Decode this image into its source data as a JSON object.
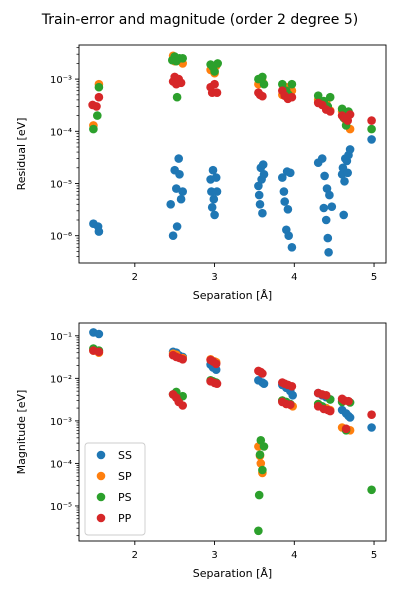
{
  "figure_title": "Train-error and magnitude (order 2 degree 5)",
  "colors": {
    "SS": "#1f77b4",
    "SP": "#ff7f0e",
    "PS": "#2ca02c",
    "PP": "#d62728"
  },
  "chart_data": [
    {
      "type": "scatter",
      "title": "",
      "xlabel": "Separation [Å]",
      "ylabel": "Residual [eV]",
      "xlim": [
        1.3,
        5.15
      ],
      "ylim": [
        3e-07,
        0.0045
      ],
      "yscale": "log",
      "xticks": [
        2,
        3,
        4,
        5
      ],
      "yticks": [
        1e-06,
        1e-05,
        0.0001,
        0.001
      ],
      "ytick_labels": [
        "10⁻⁶",
        "10⁻⁵",
        "10⁻⁴",
        "10⁻³"
      ],
      "grid": false,
      "legend": null,
      "series": [
        {
          "name": "SS",
          "points": [
            [
              1.48,
              1.7e-06
            ],
            [
              1.54,
              1.5e-06
            ],
            [
              1.55,
              1.2e-06
            ],
            [
              2.45,
              4e-06
            ],
            [
              2.48,
              1e-06
            ],
            [
              2.5,
              1.8e-05
            ],
            [
              2.52,
              8e-06
            ],
            [
              2.53,
              1.5e-06
            ],
            [
              2.55,
              3e-05
            ],
            [
              2.56,
              1.5e-05
            ],
            [
              2.58,
              5e-06
            ],
            [
              2.6,
              7e-06
            ],
            [
              2.95,
              1.2e-05
            ],
            [
              2.96,
              7e-06
            ],
            [
              2.97,
              3.5e-06
            ],
            [
              2.98,
              1.8e-05
            ],
            [
              2.99,
              5e-06
            ],
            [
              3.0,
              2.5e-06
            ],
            [
              3.02,
              1.3e-05
            ],
            [
              3.03,
              7e-06
            ],
            [
              3.55,
              9e-06
            ],
            [
              3.56,
              6e-06
            ],
            [
              3.57,
              4e-06
            ],
            [
              3.58,
              2e-05
            ],
            [
              3.59,
              1.2e-05
            ],
            [
              3.6,
              2.7e-06
            ],
            [
              3.61,
              2.3e-05
            ],
            [
              3.62,
              1.5e-05
            ],
            [
              3.85,
              1.3e-05
            ],
            [
              3.87,
              7e-06
            ],
            [
              3.88,
              4.5e-06
            ],
            [
              3.9,
              1.3e-06
            ],
            [
              3.91,
              1.7e-05
            ],
            [
              3.92,
              3.2e-06
            ],
            [
              3.93,
              1e-06
            ],
            [
              3.95,
              1.6e-05
            ],
            [
              3.97,
              6e-07
            ],
            [
              4.3,
              2.5e-05
            ],
            [
              4.35,
              3e-05
            ],
            [
              4.37,
              3.4e-06
            ],
            [
              4.38,
              1.4e-05
            ],
            [
              4.4,
              2e-06
            ],
            [
              4.41,
              8e-06
            ],
            [
              4.42,
              9e-07
            ],
            [
              4.43,
              4.8e-07
            ],
            [
              4.44,
              6e-06
            ],
            [
              4.47,
              3.6e-06
            ],
            [
              4.6,
              1.5e-05
            ],
            [
              4.61,
              2e-05
            ],
            [
              4.62,
              2.5e-06
            ],
            [
              4.63,
              1.1e-05
            ],
            [
              4.64,
              3e-05
            ],
            [
              4.66,
              2.7e-05
            ],
            [
              4.67,
              1.6e-05
            ],
            [
              4.68,
              3.5e-05
            ],
            [
              4.7,
              4.5e-05
            ],
            [
              4.97,
              7e-05
            ]
          ]
        },
        {
          "name": "SP",
          "points": [
            [
              1.48,
              0.00013
            ],
            [
              1.55,
              0.0008
            ],
            [
              2.48,
              0.0028
            ],
            [
              2.5,
              0.0022
            ],
            [
              2.52,
              0.0025
            ],
            [
              2.55,
              0.0024
            ],
            [
              2.6,
              0.002
            ],
            [
              2.95,
              0.0015
            ],
            [
              3.0,
              0.0013
            ],
            [
              3.02,
              0.0018
            ],
            [
              3.55,
              0.0008
            ],
            [
              3.6,
              0.0009
            ],
            [
              3.85,
              0.0005
            ],
            [
              3.9,
              0.0007
            ],
            [
              3.97,
              0.0006
            ],
            [
              4.3,
              0.0004
            ],
            [
              4.4,
              0.00035
            ],
            [
              4.45,
              0.00025
            ],
            [
              4.6,
              0.00024
            ],
            [
              4.65,
              0.00016
            ],
            [
              4.7,
              0.00011
            ]
          ]
        },
        {
          "name": "PS",
          "points": [
            [
              1.48,
              0.00011
            ],
            [
              1.53,
              0.0002
            ],
            [
              1.55,
              0.0007
            ],
            [
              2.47,
              0.0023
            ],
            [
              2.5,
              0.0027
            ],
            [
              2.52,
              0.0022
            ],
            [
              2.53,
              0.00045
            ],
            [
              2.56,
              0.0025
            ],
            [
              2.6,
              0.0025
            ],
            [
              2.95,
              0.0019
            ],
            [
              2.98,
              0.0017
            ],
            [
              3.0,
              0.0014
            ],
            [
              3.04,
              0.002
            ],
            [
              3.55,
              0.001
            ],
            [
              3.6,
              0.0011
            ],
            [
              3.62,
              0.0008
            ],
            [
              3.85,
              0.0008
            ],
            [
              3.9,
              0.0006
            ],
            [
              3.93,
              0.0005
            ],
            [
              3.97,
              0.0008
            ],
            [
              4.3,
              0.00048
            ],
            [
              4.37,
              0.00038
            ],
            [
              4.42,
              0.0003
            ],
            [
              4.45,
              0.00045
            ],
            [
              4.6,
              0.00027
            ],
            [
              4.62,
              0.00018
            ],
            [
              4.65,
              0.00013
            ],
            [
              4.68,
              0.00024
            ],
            [
              4.97,
              0.00011
            ]
          ]
        },
        {
          "name": "PP",
          "points": [
            [
              1.47,
              0.00032
            ],
            [
              1.52,
              0.0003
            ],
            [
              1.55,
              0.00045
            ],
            [
              2.48,
              0.0009
            ],
            [
              2.5,
              0.0011
            ],
            [
              2.52,
              0.0008
            ],
            [
              2.55,
              0.001
            ],
            [
              2.58,
              0.00085
            ],
            [
              2.95,
              0.0007
            ],
            [
              2.97,
              0.00055
            ],
            [
              3.0,
              0.0008
            ],
            [
              3.03,
              0.00055
            ],
            [
              3.55,
              0.00055
            ],
            [
              3.57,
              0.0005
            ],
            [
              3.6,
              0.00047
            ],
            [
              3.85,
              0.0006
            ],
            [
              3.88,
              0.00048
            ],
            [
              3.92,
              0.00042
            ],
            [
              3.97,
              0.00045
            ],
            [
              4.3,
              0.00035
            ],
            [
              4.35,
              0.00032
            ],
            [
              4.4,
              0.00026
            ],
            [
              4.45,
              0.00024
            ],
            [
              4.6,
              0.0002
            ],
            [
              4.63,
              0.00018
            ],
            [
              4.67,
              0.00016
            ],
            [
              4.7,
              0.00021
            ],
            [
              4.97,
              0.00016
            ]
          ]
        }
      ]
    },
    {
      "type": "scatter",
      "title": "",
      "xlabel": "Separation [Å]",
      "ylabel": "Magnitude [eV]",
      "xlim": [
        1.3,
        5.15
      ],
      "ylim": [
        1.5e-06,
        0.2
      ],
      "yscale": "log",
      "xticks": [
        2,
        3,
        4,
        5
      ],
      "yticks": [
        1e-05,
        0.0001,
        0.001,
        0.01,
        0.1
      ],
      "ytick_labels": [
        "10⁻⁵",
        "10⁻⁴",
        "10⁻³",
        "10⁻²",
        "10⁻¹"
      ],
      "grid": false,
      "legend": "lower-left",
      "legend_entries": [
        "SS",
        "SP",
        "PS",
        "PP"
      ],
      "series": [
        {
          "name": "SS",
          "points": [
            [
              1.48,
              0.12
            ],
            [
              1.55,
              0.11
            ],
            [
              2.48,
              0.042
            ],
            [
              2.52,
              0.04
            ],
            [
              2.55,
              0.035
            ],
            [
              2.6,
              0.032
            ],
            [
              2.95,
              0.021
            ],
            [
              2.98,
              0.018
            ],
            [
              3.02,
              0.016
            ],
            [
              3.55,
              0.009
            ],
            [
              3.6,
              0.008
            ],
            [
              3.62,
              0.0075
            ],
            [
              3.85,
              0.007
            ],
            [
              3.9,
              0.006
            ],
            [
              3.95,
              0.005
            ],
            [
              3.98,
              0.004
            ],
            [
              4.3,
              0.0045
            ],
            [
              4.35,
              0.004
            ],
            [
              4.4,
              0.0036
            ],
            [
              4.45,
              0.0032
            ],
            [
              4.6,
              0.0018
            ],
            [
              4.65,
              0.0015
            ],
            [
              4.68,
              0.0013
            ],
            [
              4.7,
              0.0012
            ],
            [
              4.97,
              0.0007
            ]
          ]
        },
        {
          "name": "SP",
          "points": [
            [
              1.48,
              0.045
            ],
            [
              1.55,
              0.04
            ],
            [
              2.48,
              0.038
            ],
            [
              2.52,
              0.036
            ],
            [
              2.6,
              0.03
            ],
            [
              2.95,
              0.028
            ],
            [
              3.0,
              0.025
            ],
            [
              3.02,
              0.024
            ],
            [
              3.55,
              0.00025
            ],
            [
              3.57,
              0.00015
            ],
            [
              3.58,
              0.0001
            ],
            [
              3.6,
              6e-05
            ],
            [
              3.85,
              0.003
            ],
            [
              3.9,
              0.0025
            ],
            [
              3.98,
              0.0022
            ],
            [
              4.3,
              0.0025
            ],
            [
              4.4,
              0.002
            ],
            [
              4.45,
              0.0018
            ],
            [
              4.6,
              0.0007
            ],
            [
              4.65,
              0.00065
            ],
            [
              4.7,
              0.0006
            ]
          ]
        },
        {
          "name": "PS",
          "points": [
            [
              1.48,
              0.05
            ],
            [
              1.55,
              0.045
            ],
            [
              2.48,
              0.0042
            ],
            [
              2.52,
              0.0048
            ],
            [
              2.55,
              0.0035
            ],
            [
              2.6,
              0.0038
            ],
            [
              2.95,
              0.009
            ],
            [
              2.98,
              0.0085
            ],
            [
              3.02,
              0.008
            ],
            [
              3.55,
              2.6e-06
            ],
            [
              3.56,
              1.8e-05
            ],
            [
              3.57,
              0.00016
            ],
            [
              3.58,
              0.00035
            ],
            [
              3.6,
              7e-05
            ],
            [
              3.62,
              0.00025
            ],
            [
              3.85,
              0.003
            ],
            [
              3.9,
              0.0028
            ],
            [
              3.95,
              0.0025
            ],
            [
              4.3,
              0.0025
            ],
            [
              4.35,
              0.0022
            ],
            [
              4.45,
              0.0032
            ],
            [
              4.6,
              0.0028
            ],
            [
              4.65,
              0.0006
            ],
            [
              4.7,
              0.0027
            ],
            [
              4.97,
              2.4e-05
            ]
          ]
        },
        {
          "name": "PP",
          "points": [
            [
              1.48,
              0.045
            ],
            [
              1.55,
              0.042
            ],
            [
              2.48,
              0.035
            ],
            [
              2.52,
              0.032
            ],
            [
              2.56,
              0.03
            ],
            [
              2.6,
              0.028
            ],
            [
              2.48,
              0.0042
            ],
            [
              2.52,
              0.0035
            ],
            [
              2.55,
              0.0028
            ],
            [
              2.6,
              0.0023
            ],
            [
              2.95,
              0.027
            ],
            [
              2.98,
              0.025
            ],
            [
              3.02,
              0.022
            ],
            [
              2.95,
              0.0085
            ],
            [
              3.0,
              0.0078
            ],
            [
              3.03,
              0.0075
            ],
            [
              3.55,
              0.015
            ],
            [
              3.58,
              0.014
            ],
            [
              3.6,
              0.013
            ],
            [
              3.85,
              0.008
            ],
            [
              3.88,
              0.0075
            ],
            [
              3.92,
              0.007
            ],
            [
              3.97,
              0.0065
            ],
            [
              3.85,
              0.0028
            ],
            [
              3.9,
              0.0025
            ],
            [
              3.95,
              0.0024
            ],
            [
              4.3,
              0.0045
            ],
            [
              4.35,
              0.0042
            ],
            [
              4.4,
              0.004
            ],
            [
              4.3,
              0.0022
            ],
            [
              4.37,
              0.0019
            ],
            [
              4.42,
              0.0018
            ],
            [
              4.45,
              0.0017
            ],
            [
              4.6,
              0.0033
            ],
            [
              4.63,
              0.003
            ],
            [
              4.68,
              0.0029
            ],
            [
              4.65,
              0.00065
            ],
            [
              4.97,
              0.0014
            ]
          ]
        }
      ]
    }
  ]
}
